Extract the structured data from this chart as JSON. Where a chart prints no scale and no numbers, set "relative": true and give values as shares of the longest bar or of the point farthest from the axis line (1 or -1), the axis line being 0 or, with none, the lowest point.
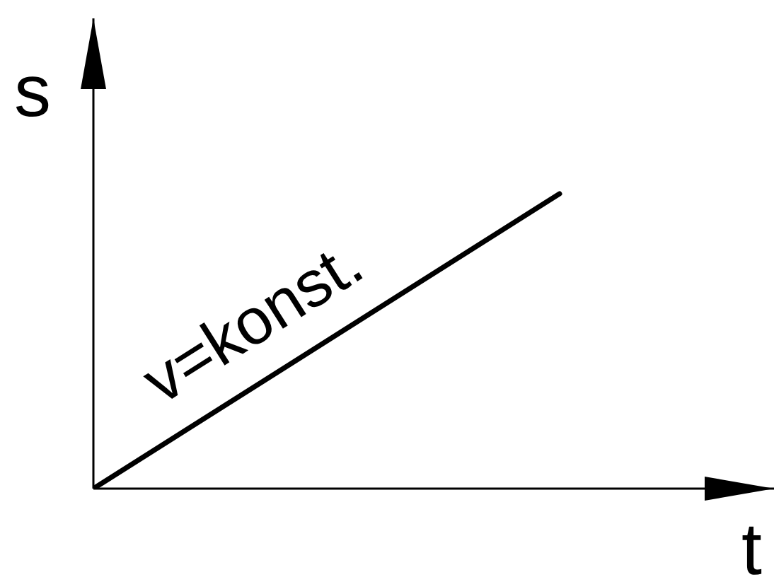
{
  "chart_data": {
    "type": "line",
    "xlabel": "t",
    "ylabel": "s",
    "categories": [
      null,
      null
    ],
    "series": [
      {
        "color": "#000000",
        "values": [
          0,
          1
        ]
      }
    ],
    "relative": true,
    "marker": "none",
    "line_style": "solid",
    "annotations": [
      "v=konst."
    ]
  }
}
